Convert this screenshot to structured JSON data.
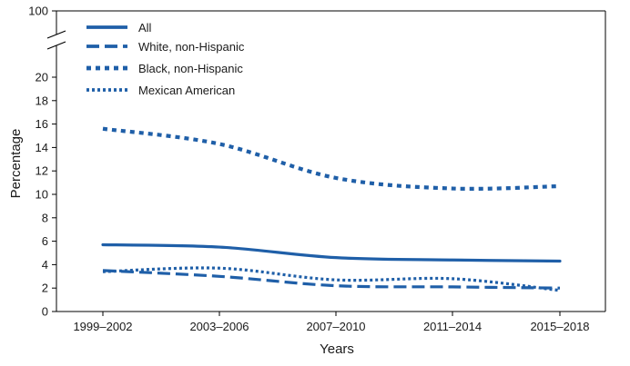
{
  "chart_data": {
    "type": "line",
    "title": "",
    "xlabel": "Years",
    "ylabel": "Percentage",
    "categories": [
      "1999–2002",
      "2003–2006",
      "2007–2010",
      "2011–2014",
      "2015–2018"
    ],
    "yticks": [
      0,
      2,
      4,
      6,
      8,
      10,
      12,
      14,
      16,
      18,
      20
    ],
    "ybreak_tick": 100,
    "ylim": [
      0,
      20
    ],
    "ylim_broken_top": 100,
    "color": "#1f5fa8",
    "legend_position": "top-left",
    "series": [
      {
        "name": "All",
        "style": "solid",
        "values": [
          5.7,
          5.5,
          4.6,
          4.4,
          4.3
        ]
      },
      {
        "name": "White, non-Hispanic",
        "style": "dash",
        "values": [
          3.5,
          3.0,
          2.2,
          2.1,
          2.0
        ]
      },
      {
        "name": "Black, non-Hispanic",
        "style": "dot",
        "values": [
          15.6,
          14.3,
          11.4,
          10.5,
          10.7
        ]
      },
      {
        "name": "Mexican American",
        "style": "fine-dot",
        "values": [
          3.4,
          3.7,
          2.7,
          2.8,
          1.8
        ]
      }
    ]
  }
}
